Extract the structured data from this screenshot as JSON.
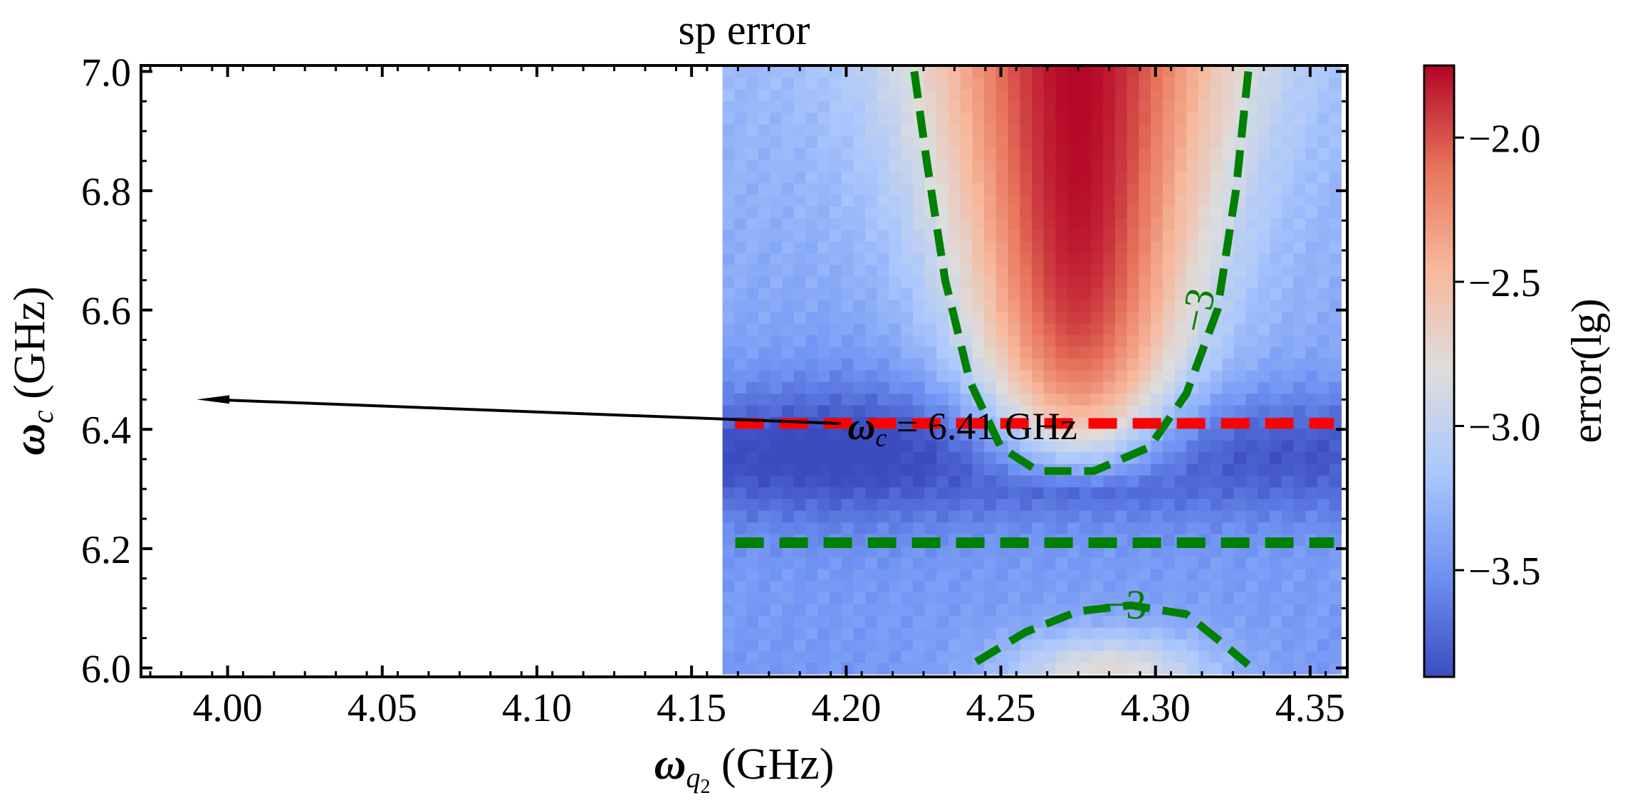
{
  "chart_data": {
    "type": "heatmap",
    "title": "sp error",
    "xlabel": {
      "symbol": "ω",
      "sub": "q",
      "subsub": "2",
      "unit": " (GHz)"
    },
    "ylabel": {
      "symbol": "ω",
      "sub": "c",
      "unit": " (GHz)"
    },
    "xlim": [
      3.972,
      4.362
    ],
    "ylim": [
      5.985,
      7.01
    ],
    "xticks": [
      4.0,
      4.05,
      4.1,
      4.15,
      4.2,
      4.25,
      4.3,
      4.35
    ],
    "xtick_labels": [
      "4.00",
      "4.05",
      "4.10",
      "4.15",
      "4.20",
      "4.25",
      "4.30",
      "4.35"
    ],
    "yticks": [
      6.0,
      6.2,
      6.4,
      6.6,
      6.8,
      7.0
    ],
    "ytick_labels": [
      "6.0",
      "6.2",
      "6.4",
      "6.6",
      "6.8",
      "7.0"
    ],
    "grid": false,
    "heatmap": {
      "x_range": [
        4.16,
        4.36
      ],
      "y_range": [
        5.99,
        7.01
      ],
      "nx": 52,
      "ny": 52,
      "description_of_field": "log10 error; high (red) band centered near ω_q2 ≈ 4.275 GHz for ω_c above ~6.33 GHz, weak warm lobe near ω_c ≈ 6.0 GHz, low (blue) elsewhere with darkest values around ω_c ≈ 6.3–6.45 GHz",
      "peak_x": 4.275,
      "peak_value": -1.75,
      "background_value": -3.35,
      "min_value": -3.85
    },
    "colorbar": {
      "label": "error(lg)",
      "vmin": -3.87,
      "vmax": -1.75,
      "ticks": [
        -2.0,
        -2.5,
        -3.0,
        -3.5
      ],
      "tick_labels": [
        "−2.0",
        "−2.5",
        "−3.0",
        "−3.5"
      ],
      "colormap": "coolwarm",
      "colors": [
        "#3b4cc0",
        "#6f92f3",
        "#aac7fd",
        "#dddddd",
        "#f7b89c",
        "#e7745b",
        "#b40426"
      ]
    },
    "contours": [
      {
        "level": -3,
        "label": "−3",
        "color": "#008000",
        "style": "dashed",
        "points": [
          [
            4.222,
            7.0
          ],
          [
            4.226,
            6.85
          ],
          [
            4.232,
            6.65
          ],
          [
            4.24,
            6.48
          ],
          [
            4.25,
            6.37
          ],
          [
            4.262,
            6.33
          ],
          [
            4.28,
            6.33
          ],
          [
            4.298,
            6.37
          ],
          [
            4.31,
            6.46
          ],
          [
            4.32,
            6.6
          ],
          [
            4.326,
            6.8
          ],
          [
            4.33,
            7.0
          ]
        ]
      },
      {
        "level": -3,
        "label": "−3",
        "color": "#008000",
        "style": "dashed",
        "points": [
          [
            4.242,
            6.01
          ],
          [
            4.258,
            6.06
          ],
          [
            4.275,
            6.095
          ],
          [
            4.292,
            6.105
          ],
          [
            4.31,
            6.09
          ],
          [
            4.322,
            6.04
          ],
          [
            4.33,
            6.005
          ]
        ]
      }
    ],
    "hlines": [
      {
        "y": 6.41,
        "x_range": [
          4.16,
          4.36
        ],
        "color": "#ff0000",
        "style": "dashed"
      },
      {
        "y": 6.21,
        "x_range": [
          4.16,
          4.36
        ],
        "color": "#008000",
        "style": "dashed"
      }
    ],
    "annotations": [
      {
        "text_symbol": "ω",
        "text_sub": "c",
        "text_rest": " = 6.41 GHz",
        "text_at": [
          4.2,
          6.405
        ],
        "arrow_to": [
          3.99,
          6.45
        ]
      }
    ]
  }
}
